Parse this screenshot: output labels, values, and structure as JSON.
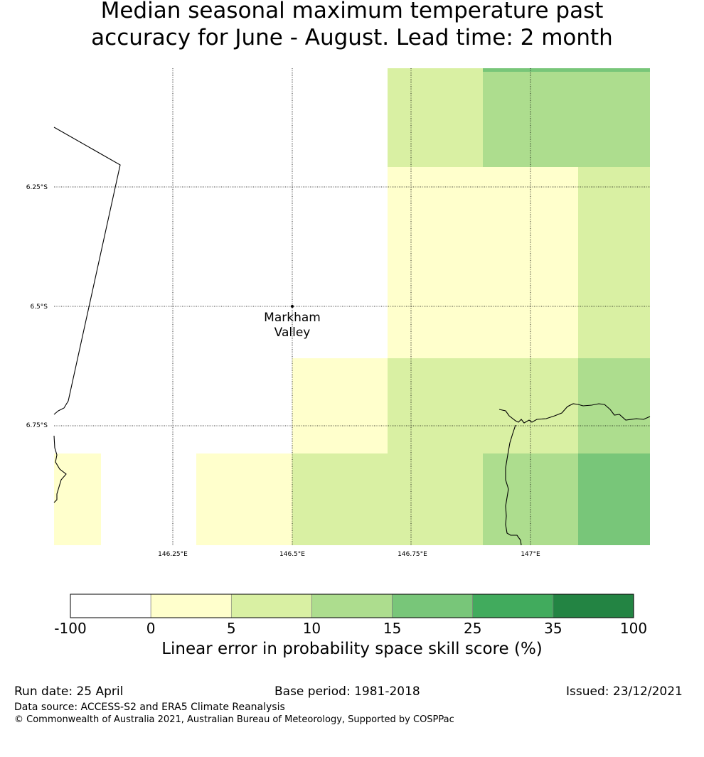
{
  "title_line1": "Median seasonal maximum temperature past",
  "title_line2": "accuracy for June - August. Lead time: 2 month",
  "map": {
    "lon_ticks": [
      "146.25°E",
      "146.5°E",
      "146.75°E",
      "147°E"
    ],
    "lat_ticks": [
      "6.25°S",
      "6.5°S",
      "6.75°S"
    ],
    "place": {
      "name_line1": "Markham",
      "name_line2": "Valley"
    }
  },
  "colorbar": {
    "ticks": [
      "-100",
      "0",
      "5",
      "10",
      "15",
      "25",
      "35",
      "100"
    ],
    "colors": [
      "#ffffff",
      "#ffffcc",
      "#d9f0a3",
      "#addd8e",
      "#78c679",
      "#41ab5d",
      "#238443"
    ],
    "label": "Linear error in probability space skill score (%)"
  },
  "footer": {
    "run_date": "Run date: 25 April",
    "base_period": "Base period: 1981-2018",
    "issued": "Issued: 23/12/2021",
    "data_source": "Data source: ACCESS-S2 and ERA5 Climate Reanalysis",
    "copyright": "© Commonwealth of Australia 2021, Australian Bureau of Meteorology, Supported by COSPPac"
  }
}
